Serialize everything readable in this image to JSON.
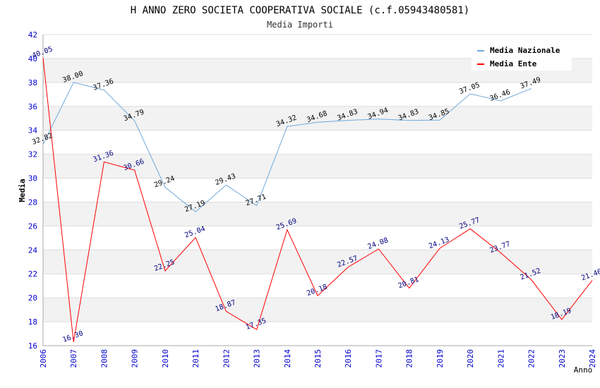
{
  "chart_data": {
    "type": "line",
    "title": "H ANNO ZERO SOCIETA COOPERATIVA SOCIALE (c.f.05943480581)",
    "subtitle": "Media Importi",
    "xlabel": "Anno",
    "ylabel": "Media",
    "ylim": [
      16,
      42
    ],
    "yticks": [
      16,
      18,
      20,
      22,
      24,
      26,
      28,
      30,
      32,
      34,
      36,
      38,
      40,
      42
    ],
    "grid": true,
    "legend_position": "top-right",
    "x": [
      "2006",
      "2007",
      "2008",
      "2009",
      "2010",
      "2011",
      "2012",
      "2013",
      "2014",
      "2015",
      "2016",
      "2017",
      "2018",
      "2019",
      "2020",
      "2021",
      "2022",
      "2023",
      "2024"
    ],
    "series": [
      {
        "name": "Media Nazionale",
        "color": "#6fa8dc",
        "label_color": "#000000",
        "values": [
          32.82,
          38.0,
          37.36,
          34.79,
          29.24,
          27.19,
          29.43,
          27.71,
          34.32,
          34.68,
          34.83,
          34.94,
          34.83,
          34.85,
          37.05,
          36.46,
          37.49,
          null,
          null
        ],
        "labels": [
          "32.82",
          "38.00",
          "37.36",
          "34.79",
          "29.24",
          "27.19",
          "29.43",
          "27.71",
          "34.32",
          "34.68",
          "34.83",
          "34.94",
          "34.83",
          "34.85",
          "37.05",
          "36.46",
          "37.49",
          "",
          ""
        ]
      },
      {
        "name": "Media Ente",
        "color": "#ff0000",
        "label_color": "#000080",
        "values": [
          40.05,
          16.3,
          31.36,
          30.66,
          22.25,
          25.04,
          18.87,
          17.35,
          25.69,
          20.18,
          22.57,
          24.08,
          20.81,
          24.13,
          25.77,
          23.77,
          21.52,
          18.19,
          21.46
        ],
        "labels": [
          "40.05",
          "16.30",
          "31.36",
          "30.66",
          "22.25",
          "25.04",
          "18.87",
          "17.35",
          "25.69",
          "20.18",
          "22.57",
          "24.08",
          "20.81",
          "24.13",
          "25.77",
          "23.77",
          "21.52",
          "18.19",
          "21.46"
        ]
      }
    ],
    "colors": {
      "axis_tick_text": "#0000cc",
      "band": "#f2f2f2",
      "grid": "#dddddd",
      "axis": "#aaaaaa"
    }
  }
}
